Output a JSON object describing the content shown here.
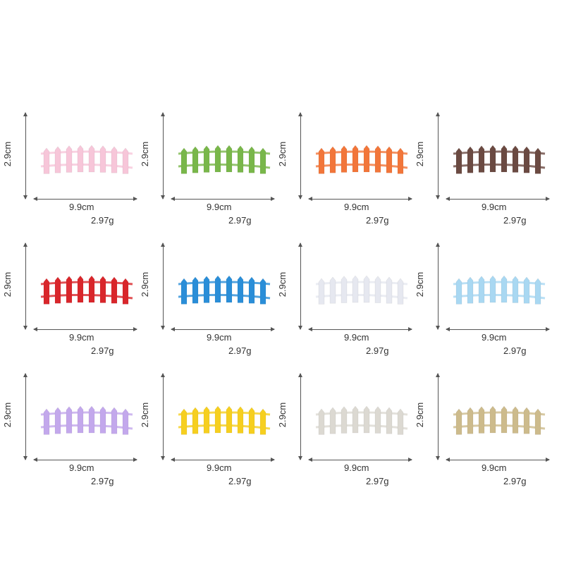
{
  "products": [
    {
      "color_name": "pink",
      "color": "#f7c6d9",
      "height_label": "2.9cm",
      "width_label": "9.9cm",
      "weight_label": "2.97g"
    },
    {
      "color_name": "green",
      "color": "#79b74a",
      "height_label": "2.9cm",
      "width_label": "9.9cm",
      "weight_label": "2.97g"
    },
    {
      "color_name": "orange",
      "color": "#f2763a",
      "height_label": "2.9cm",
      "width_label": "9.9cm",
      "weight_label": "2.97g"
    },
    {
      "color_name": "brown",
      "color": "#6b4a42",
      "height_label": "2.9cm",
      "width_label": "9.9cm",
      "weight_label": "2.97g"
    },
    {
      "color_name": "red",
      "color": "#d9262b",
      "height_label": "2.9cm",
      "width_label": "9.9cm",
      "weight_label": "2.97g"
    },
    {
      "color_name": "blue",
      "color": "#2a8ed8",
      "height_label": "2.9cm",
      "width_label": "9.9cm",
      "weight_label": "2.97g"
    },
    {
      "color_name": "white",
      "color": "#e6e8f0",
      "height_label": "2.9cm",
      "width_label": "9.9cm",
      "weight_label": "2.97g"
    },
    {
      "color_name": "light-blue",
      "color": "#a9d8f2",
      "height_label": "2.9cm",
      "width_label": "9.9cm",
      "weight_label": "2.97g"
    },
    {
      "color_name": "lavender",
      "color": "#c3a8ec",
      "height_label": "2.9cm",
      "width_label": "9.9cm",
      "weight_label": "2.97g"
    },
    {
      "color_name": "yellow",
      "color": "#f6cf1f",
      "height_label": "2.9cm",
      "width_label": "9.9cm",
      "weight_label": "2.97g"
    },
    {
      "color_name": "beige",
      "color": "#dcd9d2",
      "height_label": "2.9cm",
      "width_label": "9.9cm",
      "weight_label": "2.97g"
    },
    {
      "color_name": "khaki",
      "color": "#cdbb8c",
      "height_label": "2.9cm",
      "width_label": "9.9cm",
      "weight_label": "2.97g"
    }
  ]
}
